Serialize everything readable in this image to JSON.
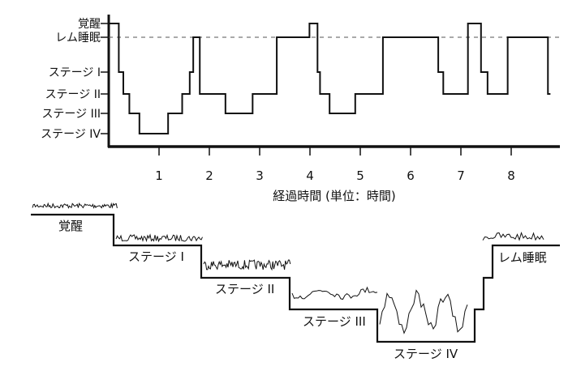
{
  "chart_data": {
    "type": "line",
    "step": true,
    "xlabel": "経過時間 (単位：時間)",
    "ylabel": "",
    "x_ticks": [
      "1",
      "2",
      "3",
      "4",
      "5",
      "6",
      "7",
      "8"
    ],
    "xlim": [
      0,
      9
    ],
    "y_levels": [
      "覚醒",
      "レム睡眠",
      "ステージ I",
      "ステージ II",
      "ステージ III",
      "ステージ IV"
    ],
    "reference_line": {
      "level": "レム睡眠",
      "style": "dashed"
    },
    "series": [
      {
        "x": [
          0,
          0.2,
          0.29,
          0.41,
          0.61,
          1.18,
          1.46,
          1.61,
          1.68,
          1.81,
          2.32,
          2.86,
          3.34,
          3.99,
          4.15,
          4.2,
          4.39,
          4.9,
          5.45,
          6.55,
          6.65,
          7.14,
          7.4,
          7.53,
          7.93,
          8.73
        ],
        "stage": [
          "覚醒",
          "ステージ I",
          "ステージ II",
          "ステージ III",
          "ステージ IV",
          "ステージ III",
          "ステージ II",
          "ステージ I",
          "レム睡眠",
          "ステージ II",
          "ステージ III",
          "ステージ II",
          "レム睡眠",
          "覚醒",
          "ステージ I",
          "ステージ II",
          "ステージ III",
          "ステージ II",
          "レム睡眠",
          "ステージ I",
          "ステージ II",
          "覚醒",
          "ステージ I",
          "ステージ II",
          "レム睡眠",
          "ステージ II"
        ]
      }
    ],
    "grid": false
  },
  "staircase": {
    "labels": [
      "覚醒",
      "ステージ I",
      "ステージ II",
      "ステージ III",
      "ステージ IV",
      "レム睡眠"
    ]
  },
  "colors": {
    "ink": "#111111",
    "dash": "#555555"
  }
}
